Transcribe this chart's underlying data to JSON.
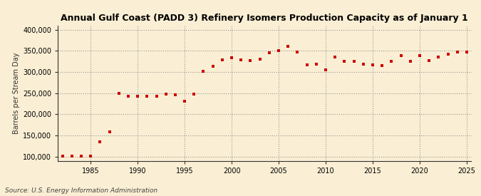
{
  "title": "Annual Gulf Coast (PADD 3) Refinery Isomers Production Capacity as of January 1",
  "ylabel": "Barrels per Stream Day",
  "source": "Source: U.S. Energy Information Administration",
  "background_color": "#faefd4",
  "plot_bg_color": "#faefd4",
  "marker_color": "#cc0000",
  "years": [
    1982,
    1983,
    1984,
    1985,
    1986,
    1987,
    1988,
    1989,
    1990,
    1991,
    1992,
    1993,
    1994,
    1995,
    1996,
    1997,
    1998,
    1999,
    2000,
    2001,
    2002,
    2003,
    2004,
    2005,
    2006,
    2007,
    2008,
    2009,
    2010,
    2011,
    2012,
    2013,
    2014,
    2015,
    2016,
    2017,
    2018,
    2019,
    2020,
    2021,
    2022,
    2023,
    2024,
    2025
  ],
  "values": [
    101000,
    101000,
    101000,
    101000,
    135000,
    158000,
    249000,
    243000,
    242000,
    243000,
    243000,
    247000,
    246000,
    230000,
    247000,
    302000,
    314000,
    329000,
    333000,
    328000,
    327000,
    330000,
    346000,
    350000,
    360000,
    348000,
    317000,
    318000,
    305000,
    336000,
    325000,
    325000,
    319000,
    317000,
    315000,
    325000,
    339000,
    325000,
    338000,
    327000,
    335000,
    342000,
    348000,
    348000
  ],
  "ylim": [
    90000,
    410000
  ],
  "yticks": [
    100000,
    150000,
    200000,
    250000,
    300000,
    350000,
    400000
  ],
  "xlim": [
    1981.5,
    2025.5
  ],
  "xticks": [
    1985,
    1990,
    1995,
    2000,
    2005,
    2010,
    2015,
    2020,
    2025
  ],
  "title_fontsize": 9,
  "tick_fontsize": 7,
  "ylabel_fontsize": 7,
  "source_fontsize": 6.5
}
